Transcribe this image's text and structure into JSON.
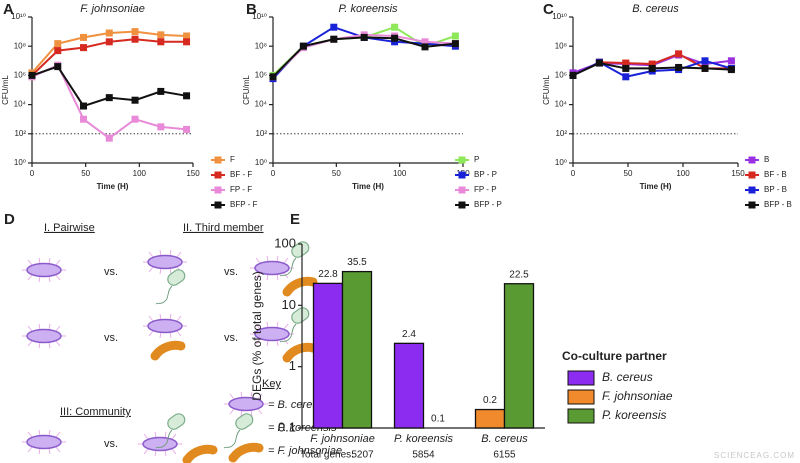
{
  "panel_labels": [
    "A",
    "B",
    "C",
    "D",
    "E"
  ],
  "watermark": "SCIENCEAG.COM",
  "chart_data": [
    {
      "type": "line",
      "title": "F. johnsoniae",
      "xlabel": "Time (H)",
      "ylabel": "CFU/mL",
      "log_y": true,
      "legend": "right",
      "x": [
        0,
        24,
        48,
        72,
        96,
        120,
        144
      ],
      "xlim": [
        0,
        150
      ],
      "xticks": [
        0,
        50,
        100,
        150
      ],
      "ylim": [
        1,
        10000000000
      ],
      "yticks": [
        {
          "value": 1,
          "label": "10⁰"
        },
        {
          "value": 100,
          "label": "10²"
        },
        {
          "value": 10000,
          "label": "10⁴"
        },
        {
          "value": 1000000,
          "label": "10⁶"
        },
        {
          "value": 100000000,
          "label": "10⁸"
        },
        {
          "value": 10000000000,
          "label": "10¹⁰"
        }
      ],
      "threshold": 100,
      "series": [
        {
          "name": "F",
          "color": "#f0913f",
          "values": [
            1500000,
            150000000,
            400000000,
            800000000,
            1000000000,
            600000000,
            500000000
          ]
        },
        {
          "name": "BF - F",
          "color": "#d62a20",
          "values": [
            1000000,
            50000000,
            80000000,
            200000000,
            300000000,
            200000000,
            200000000
          ]
        },
        {
          "name": "FP - F",
          "color": "#e88ad8",
          "values": [
            800000,
            5000000,
            1000,
            50,
            1000,
            300,
            200
          ]
        },
        {
          "name": "BFP - F",
          "color": "#111111",
          "values": [
            1000000,
            4000000,
            8000,
            30000,
            20000,
            80000,
            40000
          ]
        }
      ]
    },
    {
      "type": "line",
      "title": "P. koreensis",
      "xlabel": "Time (H)",
      "ylabel": "CFU/mL",
      "log_y": true,
      "legend": "right",
      "x": [
        0,
        24,
        48,
        72,
        96,
        120,
        144
      ],
      "xlim": [
        0,
        150
      ],
      "xticks": [
        0,
        50,
        100,
        150
      ],
      "ylim": [
        1,
        10000000000
      ],
      "yticks": [
        {
          "value": 1,
          "label": "10⁰"
        },
        {
          "value": 100,
          "label": "10²"
        },
        {
          "value": 10000,
          "label": "10⁴"
        },
        {
          "value": 1000000,
          "label": "10⁶"
        },
        {
          "value": 100000000,
          "label": "10⁸"
        },
        {
          "value": 10000000000,
          "label": "10¹⁰"
        }
      ],
      "threshold": 100,
      "series": [
        {
          "name": "P",
          "color": "#8ee85a",
          "values": [
            1000000,
            100000000,
            300000000,
            400000000,
            2000000000,
            100000000,
            500000000
          ]
        },
        {
          "name": "BP - P",
          "color": "#1a22d8",
          "values": [
            600000,
            100000000,
            2000000000,
            400000000,
            200000000,
            150000000,
            100000000
          ]
        },
        {
          "name": "FP - P",
          "color": "#e88ad8",
          "values": [
            800000,
            80000000,
            300000000,
            600000000,
            500000000,
            200000000,
            150000000
          ]
        },
        {
          "name": "BFP - P",
          "color": "#111111",
          "values": [
            800000,
            100000000,
            300000000,
            400000000,
            350000000,
            90000000,
            150000000
          ]
        }
      ]
    },
    {
      "type": "line",
      "title": "B. cereus",
      "xlabel": "Time (H)",
      "ylabel": "CFU/mL",
      "log_y": true,
      "legend": "right",
      "x": [
        0,
        24,
        48,
        72,
        96,
        120,
        144
      ],
      "xlim": [
        0,
        150
      ],
      "xticks": [
        0,
        50,
        100,
        150
      ],
      "ylim": [
        1,
        10000000000
      ],
      "yticks": [
        {
          "value": 1,
          "label": "10⁰"
        },
        {
          "value": 100,
          "label": "10²"
        },
        {
          "value": 10000,
          "label": "10⁴"
        },
        {
          "value": 1000000,
          "label": "10⁶"
        },
        {
          "value": 100000000,
          "label": "10⁸"
        },
        {
          "value": 10000000000,
          "label": "10¹⁰"
        }
      ],
      "threshold": 100,
      "series": [
        {
          "name": "B",
          "color": "#9b30e0",
          "values": [
            1500000,
            7000000,
            6000000,
            5000000,
            25000000,
            6000000,
            10000000
          ]
        },
        {
          "name": "BF - B",
          "color": "#d62a20",
          "values": [
            1000000,
            8000000,
            7000000,
            6000000,
            30000000,
            3000000,
            3000000
          ]
        },
        {
          "name": "BP - B",
          "color": "#1a22d8",
          "values": [
            1000000,
            8000000,
            800000,
            2000000,
            2500000,
            10000000,
            3000000
          ]
        },
        {
          "name": "BFP - B",
          "color": "#111111",
          "values": [
            1000000,
            7000000,
            3000000,
            3000000,
            3500000,
            3000000,
            2500000
          ]
        }
      ]
    },
    {
      "type": "bar",
      "ylabel": "DEGs (% of total genes)",
      "log_y": true,
      "legend": "right",
      "legend_title": "Co-culture partner",
      "categories": [
        "F. johnsoniae",
        "P. koreensis",
        "B. cereus"
      ],
      "totals_label": "Total genes:",
      "totals": [
        5207,
        5854,
        6155
      ],
      "ylim": [
        0.1,
        100
      ],
      "yticks": [
        0.1,
        1,
        10,
        100
      ],
      "series": [
        {
          "name": "B. cereus",
          "color": "#8b2cf0",
          "values": [
            22.8,
            2.4,
            null
          ]
        },
        {
          "name": "F. johnsoniae",
          "color": "#f08a2c",
          "values": [
            null,
            0.1,
            0.2
          ]
        },
        {
          "name": "P. koreensis",
          "color": "#5a9a32",
          "values": [
            35.5,
            null,
            22.5
          ]
        }
      ]
    }
  ],
  "diagram": {
    "headings": [
      "I. Pairwise",
      "II. Third member",
      "III: Community"
    ],
    "vs": [
      "vs.",
      "vs.",
      "vs.",
      "vs.",
      "vs."
    ],
    "key_title": "Key",
    "key": [
      "= B. cereus",
      "= P. koreensis",
      "= F. johnsoniae"
    ]
  }
}
